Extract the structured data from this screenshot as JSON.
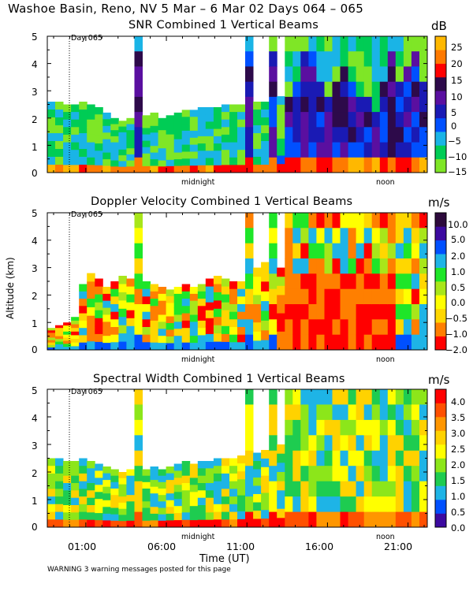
{
  "page": {
    "title": "Washoe Basin, Reno, NV   5 Mar –  6 Mar 02 Days 064 – 065",
    "warning": "WARNING  3 warning messages posted for this page"
  },
  "colors": {
    "snr": [
      "#7fe626",
      "#00cc55",
      "#1ab4e6",
      "#0050ff",
      "#1a1ab4",
      "#5a0fa0",
      "#2d0a4a",
      "#ff0000",
      "#ff7a00",
      "#ffb800"
    ],
    "doppler": [
      "#ff0000",
      "#ff7f00",
      "#ffd700",
      "#ffff00",
      "#a8e61a",
      "#1ee628",
      "#1eb4e6",
      "#0050ff",
      "#3c0aa0",
      "#2d0a3c"
    ],
    "width": [
      "#3c0aa0",
      "#0050ff",
      "#1eb4e6",
      "#1ecc50",
      "#8ce61a",
      "#ffff00",
      "#ffd200",
      "#ff9600",
      "#ff5000",
      "#ff0000"
    ]
  },
  "chart_data": [
    {
      "type": "heatmap",
      "title": "SNR Combined 1 Vertical Beams",
      "xlabel": "",
      "ylabel": "",
      "ylim": [
        0,
        5
      ],
      "y_ticks": [
        "5",
        "4",
        "3",
        "2",
        "1",
        "0"
      ],
      "x_markers": [
        "midnight",
        "noon"
      ],
      "day_label": "Day 065",
      "colorbar_unit": "dB",
      "colorbar_ticks": [
        "25",
        "20",
        "15",
        "10",
        "5",
        "0",
        "−5",
        "−10",
        "−15"
      ],
      "colorbar_range": [
        -15,
        30
      ],
      "series": [
        {
          "name": "echo_top_km",
          "values": [
            2.6,
            2.6,
            2.5,
            2.5,
            2.6,
            2.5,
            2.4,
            2.2,
            2.0,
            1.9,
            2.0,
            5.0,
            2.1,
            2.2,
            2.0,
            2.1,
            2.2,
            2.3,
            2.3,
            2.4,
            2.4,
            2.4,
            2.5,
            2.5,
            2.5,
            5.0,
            2.6,
            2.6,
            5.0,
            2.8,
            5.0,
            5.0,
            5.0,
            5.0,
            5.0,
            5.0,
            5.0,
            5.0,
            5.0,
            5.0,
            5.0,
            5.0,
            5.0,
            5.0,
            5.0,
            5.0,
            5.0,
            5.0
          ]
        },
        {
          "name": "strong_echo_top_km",
          "values": [
            0.4,
            0.4,
            0.3,
            0.3,
            0.3,
            0.3,
            0.3,
            0.3,
            0.3,
            0.3,
            0.4,
            4.8,
            0.4,
            0.4,
            0.4,
            0.4,
            0.4,
            0.4,
            0.4,
            0.3,
            0.3,
            0.4,
            0.4,
            0.4,
            0.4,
            4.5,
            0.5,
            0.5,
            4.6,
            0.8,
            3.2,
            3.6,
            4.8,
            4.6,
            3.4,
            3.3,
            3.6,
            4.0,
            3.5,
            2.8,
            3.0,
            2.4,
            3.5,
            4.5,
            3.6,
            4.4,
            4.6,
            3.8
          ]
        }
      ]
    },
    {
      "type": "heatmap",
      "title": "Doppler Velocity Combined 1 Vertical Beams",
      "xlabel": "",
      "ylabel": "Altitude (km)",
      "ylim": [
        0,
        5
      ],
      "y_ticks": [
        "5",
        "4",
        "3",
        "2",
        "1",
        "0"
      ],
      "x_markers": [
        "midnight",
        "noon"
      ],
      "day_label": "Day 065",
      "colorbar_unit": "m/s",
      "colorbar_ticks": [
        "10.0",
        "5.0",
        "2.0",
        "1.0",
        "0.5",
        "0.0",
        "−0.5",
        "−1.0",
        "−2.0"
      ],
      "colorbar_range": [
        -2,
        10
      ],
      "series": [
        {
          "name": "echo_top_km",
          "values": [
            0.8,
            0.9,
            1.0,
            1.2,
            2.4,
            2.8,
            2.6,
            2.3,
            2.5,
            2.7,
            2.6,
            5.0,
            2.5,
            2.4,
            2.3,
            2.2,
            2.3,
            2.4,
            2.3,
            2.4,
            2.6,
            2.7,
            2.6,
            2.5,
            2.5,
            5.0,
            3.0,
            3.2,
            5.0,
            3.0,
            5.0,
            5.0,
            5.0,
            5.0,
            5.0,
            5.0,
            5.0,
            5.0,
            5.0,
            5.0,
            5.0,
            5.0,
            5.0,
            5.0,
            5.0,
            5.0,
            5.0,
            5.0
          ]
        }
      ]
    },
    {
      "type": "heatmap",
      "title": "Spectral Width Combined 1 Vertical Beams",
      "xlabel": "Time (UT)",
      "ylabel": "",
      "ylim": [
        0,
        5
      ],
      "y_ticks": [
        "5",
        "4",
        "3",
        "2",
        "1",
        "0"
      ],
      "x_ticks": [
        "01:00",
        "06:00",
        "11:00",
        "16:00",
        "21:00"
      ],
      "x_markers": [
        "midnight",
        "noon"
      ],
      "day_label": "Day 065",
      "colorbar_unit": "m/s",
      "colorbar_ticks": [
        "4.0",
        "3.5",
        "3.0",
        "2.5",
        "2.0",
        "1.5",
        "1.0",
        "0.5",
        "0.0"
      ],
      "colorbar_range": [
        0,
        4.5
      ],
      "series": [
        {
          "name": "echo_top_km",
          "values": [
            2.5,
            2.5,
            2.4,
            2.4,
            2.5,
            2.4,
            2.3,
            2.2,
            2.1,
            2.0,
            2.1,
            5.0,
            2.1,
            2.2,
            2.1,
            2.2,
            2.3,
            2.4,
            2.3,
            2.4,
            2.4,
            2.5,
            2.5,
            2.5,
            2.6,
            5.0,
            2.7,
            2.8,
            5.0,
            3.0,
            5.0,
            5.0,
            5.0,
            5.0,
            5.0,
            5.0,
            5.0,
            5.0,
            5.0,
            5.0,
            5.0,
            5.0,
            5.0,
            5.0,
            5.0,
            5.0,
            5.0,
            5.0
          ]
        }
      ]
    }
  ]
}
